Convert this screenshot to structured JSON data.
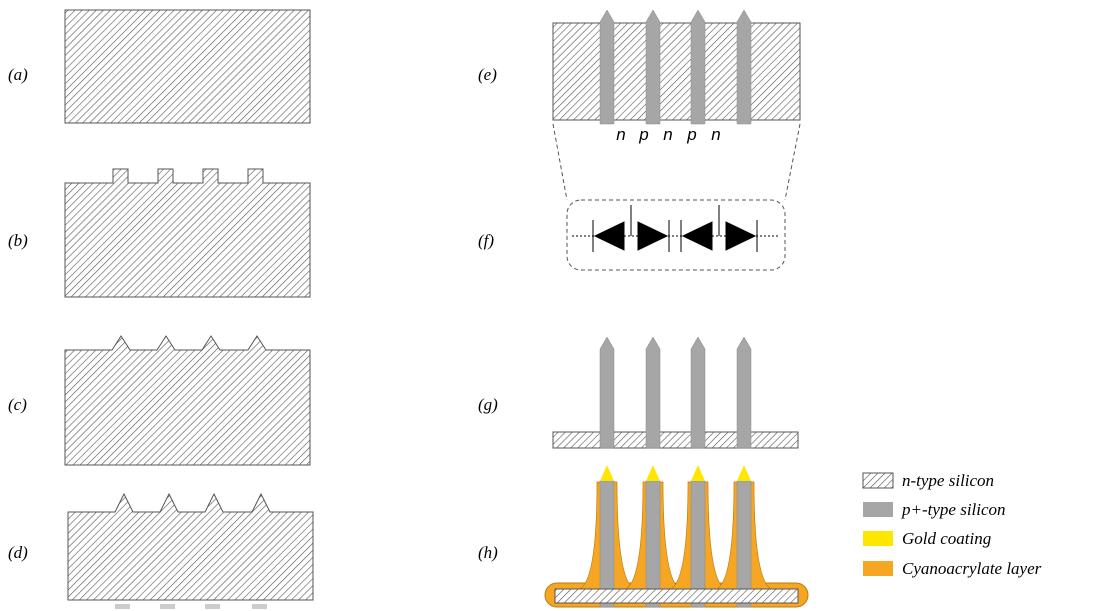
{
  "panels": [
    {
      "label": "(a)"
    },
    {
      "label": "(b)"
    },
    {
      "label": "(c)"
    },
    {
      "label": "(d)"
    },
    {
      "label": "(e)"
    },
    {
      "label": "(f)"
    },
    {
      "label": "(g)"
    },
    {
      "label": "(h)"
    }
  ],
  "junction_labels": [
    "n",
    "p",
    "n",
    "p",
    "n"
  ],
  "legend": [
    {
      "label": "n-type silicon"
    },
    {
      "label": "p+-type silicon"
    },
    {
      "label": "Gold coating"
    },
    {
      "label": "Cyanoacrylate layer"
    }
  ]
}
